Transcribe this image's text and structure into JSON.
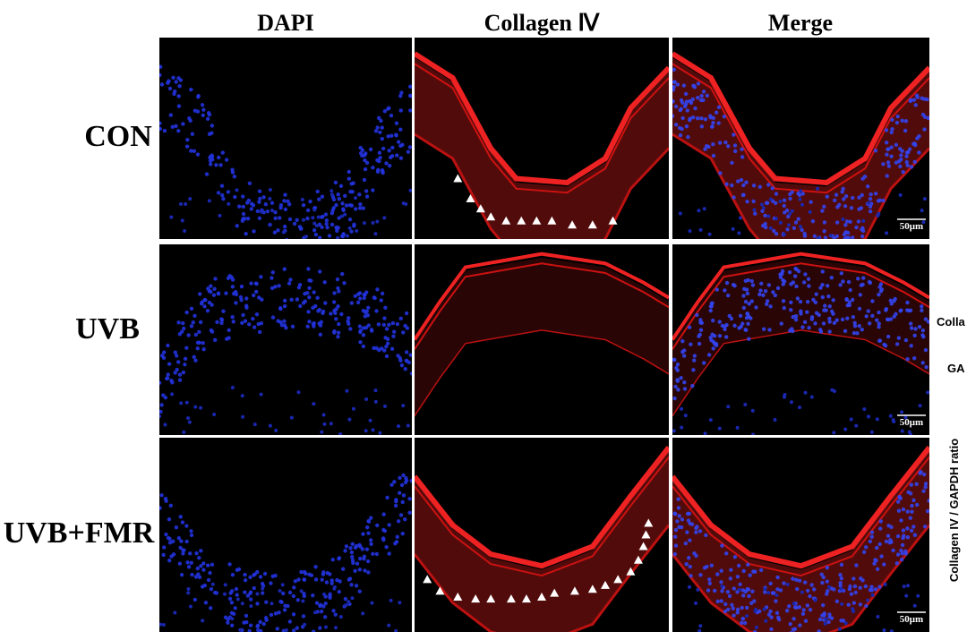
{
  "headers": [
    "DAPI",
    "Collagen Ⅳ",
    "Merge"
  ],
  "rows": [
    "CON",
    "UVB",
    "UVB+FMR"
  ],
  "scale_bars": [
    "50μm",
    "50μm",
    "50μm"
  ],
  "side_labels": [
    "Colla",
    "GA"
  ],
  "axis_label": "Collagen IV / GAPDH ratio"
}
